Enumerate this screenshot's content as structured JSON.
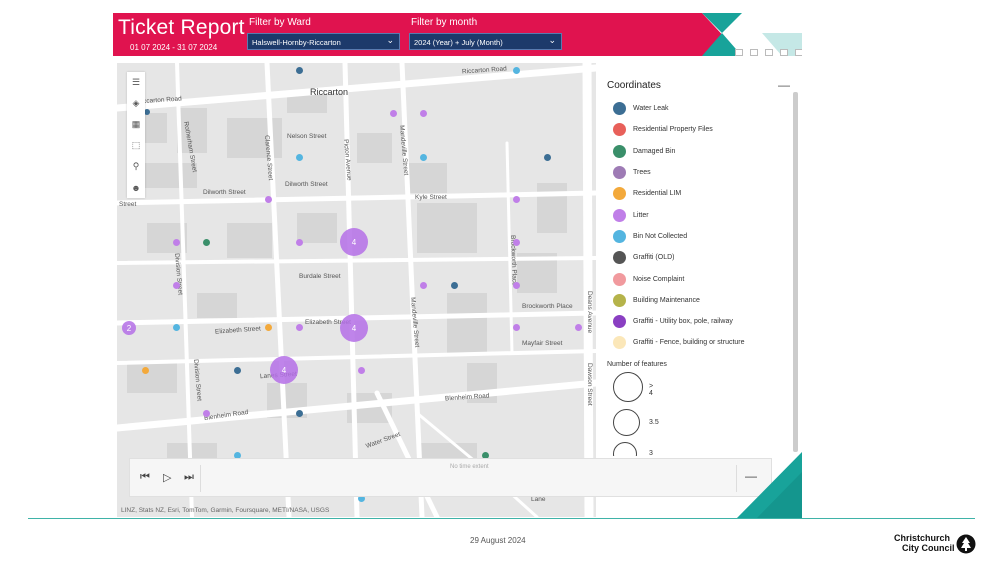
{
  "header": {
    "title": "Ticket Report",
    "date_range": "01 07 2024 - 31 07 2024",
    "ward_filter": {
      "label": "Filter by Ward",
      "value": "Halswell-Hornby-Riccarton"
    },
    "month_filter": {
      "label": "Filter by month",
      "value": "2024 (Year) + July (Month)"
    },
    "brand_color": "#e0134f",
    "accent_color": "#18a39a"
  },
  "map": {
    "place_labels": {
      "suburb": "Riccarton",
      "riccarton_road_w": "Riccarton Road",
      "riccarton_road_e": "Riccarton Road",
      "rotherham": "Rotherham Street",
      "nelson": "Nelson Street",
      "clarence": "Clarence Street",
      "picton": "Picton Avenue",
      "mandeville": "Mandeville Street",
      "dilworth1": "Dilworth Street",
      "dilworth2": "Dilworth Street",
      "kyle": "Kyle Street",
      "street_w": "Street",
      "division": "Division Street",
      "burdale": "Burdale Street",
      "brockworth_pl_v": "Brockworth Place",
      "brockworth_pl_h": "Brockworth Place",
      "elizabeth1": "Elizabeth Street",
      "elizabeth2": "Elizabeth Street",
      "mayfair": "Mayfair Street",
      "deans": "Deans Avenue",
      "dawson": "Dawson Street",
      "division2": "Division Street",
      "lanes": "Lanes Street",
      "blenheim_w": "Blenheim Road",
      "blenheim_e": "Blenheim Road",
      "water": "Water Street",
      "lane": "Lane",
      "mandeville2": "Mandeville Street"
    },
    "clusters": [
      "4",
      "4",
      "4",
      "2"
    ],
    "attribution": "LINZ, Stats NZ, Esri, TomTom, Garmin, Foursquare, METI/NASA, USGS",
    "tools": [
      "menu-icon",
      "layers-icon",
      "grid-icon",
      "select-icon",
      "search-icon",
      "person-icon"
    ]
  },
  "time_slider": {
    "no_time_extent": "No time extent",
    "buttons": [
      "skip-back-icon",
      "play-icon",
      "skip-forward-icon"
    ],
    "collapse": "—"
  },
  "legend": {
    "title": "Coordinates",
    "collapse": "—",
    "items": [
      {
        "label": "Water Leak",
        "color": "#3c6e94"
      },
      {
        "label": "Residential Property Files",
        "color": "#e8605a"
      },
      {
        "label": "Damaged Bin",
        "color": "#3a8f6a"
      },
      {
        "label": "Trees",
        "color": "#9e7bb5"
      },
      {
        "label": "Residential LIM",
        "color": "#f3a93b"
      },
      {
        "label": "Litter",
        "color": "#c07fe8"
      },
      {
        "label": "Bin Not Collected",
        "color": "#54b5e0"
      },
      {
        "label": "Graffiti (OLD)",
        "color": "#555555"
      },
      {
        "label": "Noise Complaint",
        "color": "#f19a9e"
      },
      {
        "label": "Building Maintenance",
        "color": "#b5b34a"
      },
      {
        "label": "Graffiti - Utility box, pole, railway",
        "color": "#8a3fc2"
      },
      {
        "label": "Graffiti - Fence, building or structure",
        "color": "#fbe7b9"
      }
    ],
    "size_title": "Number of features",
    "sizes": [
      "> 4",
      "3.5",
      "3"
    ]
  },
  "footer": {
    "date": "29 August 2024",
    "logo_line1": "Christchurch",
    "logo_line2": "City Council"
  }
}
